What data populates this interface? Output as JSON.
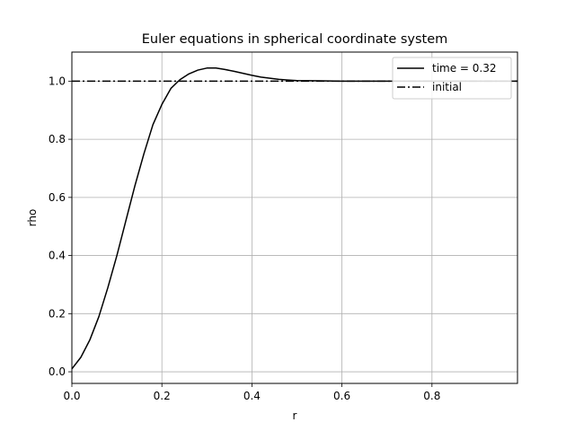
{
  "chart_data": {
    "type": "line",
    "title": "Euler equations in spherical coordinate system",
    "xlabel": "r",
    "ylabel": "rho",
    "xlim": [
      0.0,
      0.99
    ],
    "ylim": [
      -0.04,
      1.1
    ],
    "xticks": [
      0.0,
      0.2,
      0.4,
      0.6,
      0.8
    ],
    "xtick_labels": [
      "0.0",
      "0.2",
      "0.4",
      "0.6",
      "0.8"
    ],
    "yticks": [
      0.0,
      0.2,
      0.4,
      0.6,
      0.8,
      1.0
    ],
    "ytick_labels": [
      "0.0",
      "0.2",
      "0.4",
      "0.6",
      "0.8",
      "1.0"
    ],
    "grid": true,
    "legend_position": "top-right",
    "series": [
      {
        "name": "time = 0.32",
        "style": "solid",
        "color": "#000000",
        "x": [
          0.0,
          0.02,
          0.04,
          0.06,
          0.08,
          0.1,
          0.12,
          0.14,
          0.16,
          0.18,
          0.2,
          0.22,
          0.24,
          0.26,
          0.28,
          0.3,
          0.32,
          0.34,
          0.36,
          0.38,
          0.4,
          0.42,
          0.44,
          0.46,
          0.48,
          0.5,
          0.55,
          0.6,
          0.65,
          0.7,
          0.75,
          0.8,
          0.85,
          0.9,
          0.95,
          0.99
        ],
        "y": [
          0.01,
          0.05,
          0.11,
          0.19,
          0.29,
          0.4,
          0.52,
          0.64,
          0.75,
          0.85,
          0.92,
          0.975,
          1.005,
          1.025,
          1.038,
          1.045,
          1.045,
          1.04,
          1.034,
          1.027,
          1.02,
          1.014,
          1.01,
          1.006,
          1.004,
          1.002,
          1.001,
          1.0,
          1.0,
          1.0,
          1.0,
          1.0,
          1.0,
          1.0,
          1.0,
          1.0
        ]
      },
      {
        "name": "initial",
        "style": "dashdot",
        "color": "#000000",
        "x": [
          0.0,
          0.99
        ],
        "y": [
          1.0,
          1.0
        ]
      }
    ]
  }
}
